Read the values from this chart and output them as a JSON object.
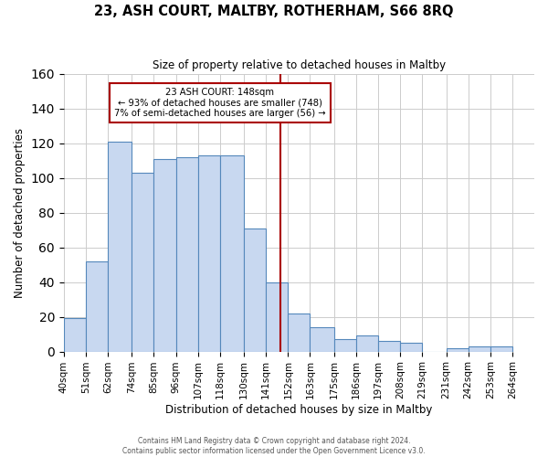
{
  "title": "23, ASH COURT, MALTBY, ROTHERHAM, S66 8RQ",
  "subtitle": "Size of property relative to detached houses in Maltby",
  "xlabel": "Distribution of detached houses by size in Maltby",
  "ylabel": "Number of detached properties",
  "footer_line1": "Contains HM Land Registry data © Crown copyright and database right 2024.",
  "footer_line2": "Contains public sector information licensed under the Open Government Licence v3.0.",
  "bin_labels": [
    "40sqm",
    "51sqm",
    "62sqm",
    "74sqm",
    "85sqm",
    "96sqm",
    "107sqm",
    "118sqm",
    "130sqm",
    "141sqm",
    "152sqm",
    "163sqm",
    "175sqm",
    "186sqm",
    "197sqm",
    "208sqm",
    "219sqm",
    "231sqm",
    "242sqm",
    "253sqm",
    "264sqm"
  ],
  "bin_edges": [
    40,
    51,
    62,
    74,
    85,
    96,
    107,
    118,
    130,
    141,
    152,
    163,
    175,
    186,
    197,
    208,
    219,
    231,
    242,
    253,
    264
  ],
  "bar_heights": [
    19,
    52,
    121,
    103,
    111,
    112,
    113,
    113,
    71,
    40,
    22,
    14,
    7,
    9,
    6,
    5,
    0,
    2,
    3,
    3
  ],
  "bar_color": "#c8d8f0",
  "bar_edge_color": "#5588bb",
  "vline_x": 148,
  "vline_color": "#aa0000",
  "annotation_title": "23 ASH COURT: 148sqm",
  "annotation_line1": "← 93% of detached houses are smaller (748)",
  "annotation_line2": "7% of semi-detached houses are larger (56) →",
  "annotation_box_color": "#ffffff",
  "annotation_box_edge_color": "#aa0000",
  "ylim": [
    0,
    160
  ],
  "yticks": [
    0,
    20,
    40,
    60,
    80,
    100,
    120,
    140,
    160
  ],
  "background_color": "#ffffff",
  "grid_color": "#cccccc"
}
